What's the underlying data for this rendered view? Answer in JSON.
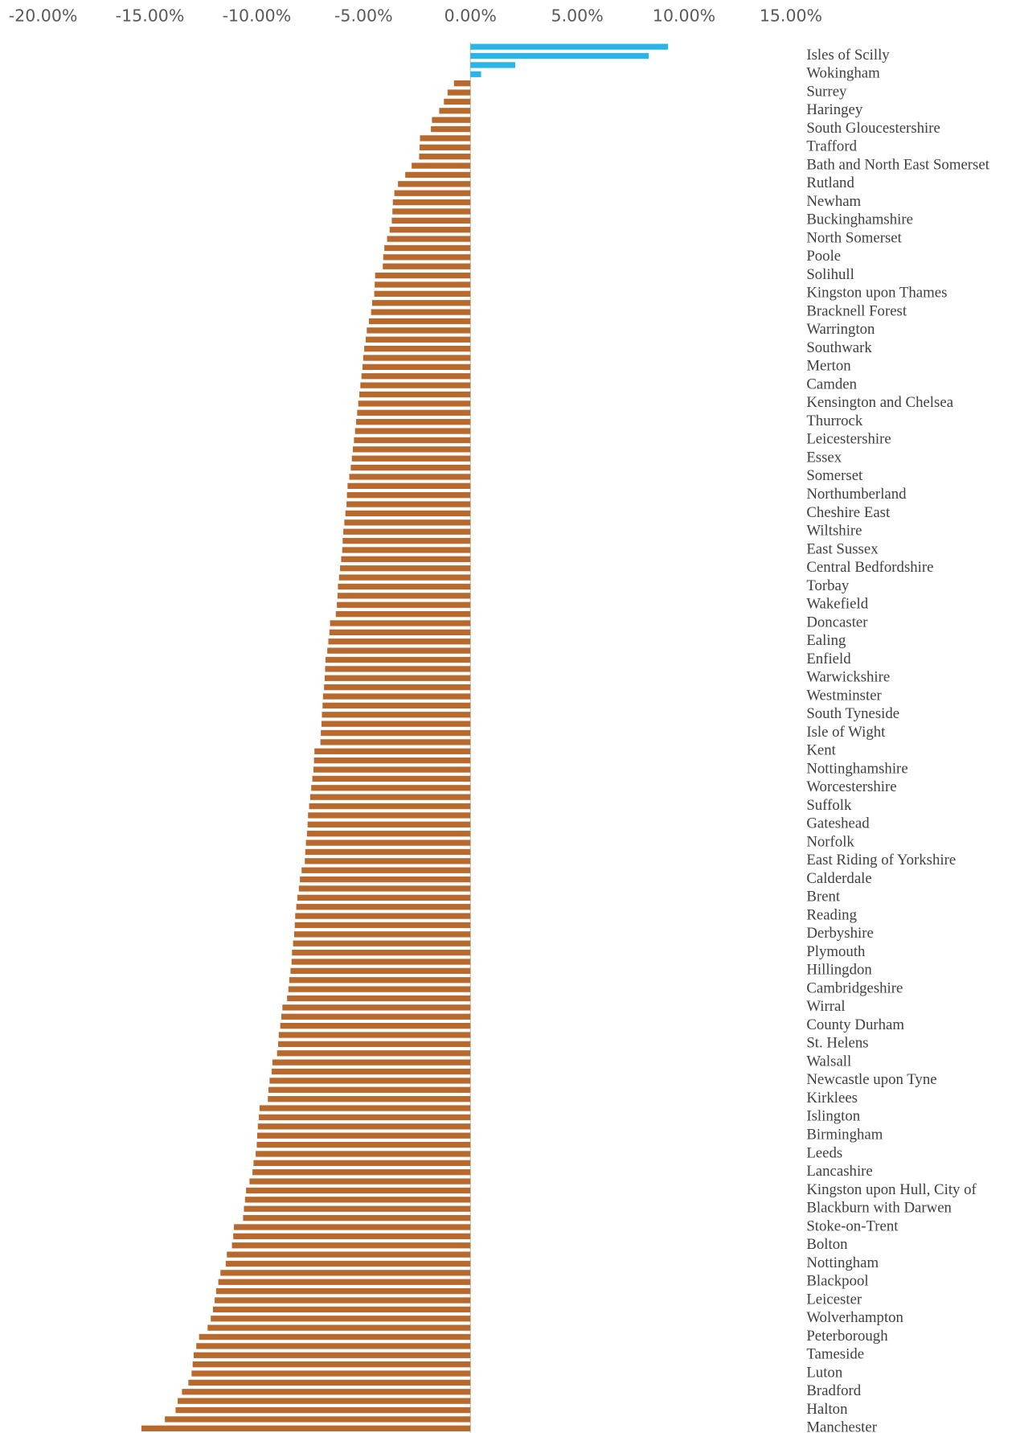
{
  "chart_data": {
    "type": "hbar",
    "orientation": "horizontal",
    "color": "#b8692e",
    "positive_color": "#2bb5e6",
    "xlim": [
      -20,
      15
    ],
    "xticks": [
      {
        "value": -20,
        "label": "-20.00%"
      },
      {
        "value": -15,
        "label": "-15.00%"
      },
      {
        "value": -10,
        "label": "-10.00%"
      },
      {
        "value": -5,
        "label": "-5.00%"
      },
      {
        "value": 0,
        "label": "0.00%"
      },
      {
        "value": 5,
        "label": "5.00%"
      },
      {
        "value": 10,
        "label": "10.00%"
      },
      {
        "value": 15,
        "label": "15.00%"
      }
    ],
    "grid": false,
    "categories": [
      null,
      "Isles of Scilly",
      null,
      "Wokingham",
      null,
      "Surrey",
      null,
      "Haringey",
      null,
      "South Gloucestershire",
      null,
      "Trafford",
      null,
      "Bath and North East Somerset",
      null,
      "Rutland",
      null,
      "Newham",
      null,
      "Buckinghamshire",
      null,
      "North Somerset",
      null,
      "Poole",
      null,
      "Solihull",
      null,
      "Kingston upon Thames",
      null,
      "Bracknell Forest",
      null,
      "Warrington",
      null,
      "Southwark",
      null,
      "Merton",
      null,
      "Camden",
      null,
      "Kensington and Chelsea",
      null,
      "Thurrock",
      null,
      "Leicestershire",
      null,
      "Essex",
      null,
      "Somerset",
      null,
      "Northumberland",
      null,
      "Cheshire East",
      null,
      "Wiltshire",
      null,
      "East Sussex",
      null,
      "Central Bedfordshire",
      null,
      "Torbay",
      null,
      "Wakefield",
      null,
      "Doncaster",
      null,
      "Ealing",
      null,
      "Enfield",
      null,
      "Warwickshire",
      null,
      "Westminster",
      null,
      "South Tyneside",
      null,
      "Isle of Wight",
      null,
      "Kent",
      null,
      "Nottinghamshire",
      null,
      "Worcestershire",
      null,
      "Suffolk",
      null,
      "Gateshead",
      null,
      "Norfolk",
      null,
      "East Riding of Yorkshire",
      null,
      "Calderdale",
      null,
      "Brent",
      null,
      "Reading",
      null,
      "Derbyshire",
      null,
      "Plymouth",
      null,
      "Hillingdon",
      null,
      "Cambridgeshire",
      null,
      "Wirral",
      null,
      "County Durham",
      null,
      "St. Helens",
      null,
      "Walsall",
      null,
      "Newcastle upon Tyne",
      null,
      "Kirklees",
      null,
      "Islington",
      null,
      "Birmingham",
      null,
      "Leeds",
      null,
      "Lancashire",
      null,
      "Kingston upon Hull, City of",
      null,
      "Blackburn with Darwen",
      null,
      "Stoke-on-Trent",
      null,
      "Bolton",
      null,
      "Nottingham",
      null,
      "Blackpool",
      null,
      "Leicester",
      null,
      "Wolverhampton",
      null,
      "Peterborough",
      null,
      "Tameside",
      null,
      "Luton",
      null,
      "Bradford",
      null,
      "Halton",
      null,
      "Manchester"
    ],
    "values": [
      9.25,
      8.35,
      2.1,
      0.5,
      -0.77,
      -1.07,
      -1.24,
      -1.46,
      -1.8,
      -1.85,
      -2.36,
      -2.38,
      -2.4,
      -2.75,
      -3.05,
      -3.39,
      -3.56,
      -3.63,
      -3.65,
      -3.68,
      -3.78,
      -3.9,
      -4.03,
      -4.08,
      -4.1,
      -4.46,
      -4.48,
      -4.5,
      -4.6,
      -4.65,
      -4.75,
      -4.85,
      -4.9,
      -4.97,
      -5.02,
      -5.05,
      -5.1,
      -5.15,
      -5.2,
      -5.25,
      -5.3,
      -5.35,
      -5.4,
      -5.45,
      -5.5,
      -5.55,
      -5.6,
      -5.67,
      -5.75,
      -5.78,
      -5.8,
      -5.85,
      -5.9,
      -5.95,
      -5.98,
      -6.0,
      -6.05,
      -6.1,
      -6.15,
      -6.2,
      -6.22,
      -6.25,
      -6.3,
      -6.57,
      -6.6,
      -6.65,
      -6.7,
      -6.78,
      -6.8,
      -6.82,
      -6.85,
      -6.9,
      -6.92,
      -6.95,
      -6.97,
      -7.0,
      -7.02,
      -7.3,
      -7.32,
      -7.35,
      -7.4,
      -7.45,
      -7.5,
      -7.55,
      -7.6,
      -7.62,
      -7.65,
      -7.7,
      -7.73,
      -7.75,
      -7.9,
      -7.98,
      -8.03,
      -8.1,
      -8.15,
      -8.2,
      -8.22,
      -8.25,
      -8.3,
      -8.35,
      -8.37,
      -8.42,
      -8.48,
      -8.52,
      -8.58,
      -8.8,
      -8.85,
      -8.9,
      -8.97,
      -9.0,
      -9.05,
      -9.27,
      -9.3,
      -9.4,
      -9.45,
      -9.48,
      -9.87,
      -9.9,
      -9.95,
      -9.98,
      -10.0,
      -10.05,
      -10.15,
      -10.2,
      -10.34,
      -10.5,
      -10.55,
      -10.6,
      -10.64,
      -11.07,
      -11.1,
      -11.16,
      -11.4,
      -11.45,
      -11.7,
      -11.8,
      -11.9,
      -11.97,
      -12.05,
      -12.15,
      -12.3,
      -12.7,
      -12.83,
      -12.95,
      -13.0,
      -13.05,
      -13.2,
      -13.5,
      -13.7,
      -13.8,
      -14.3,
      -15.4
    ]
  }
}
